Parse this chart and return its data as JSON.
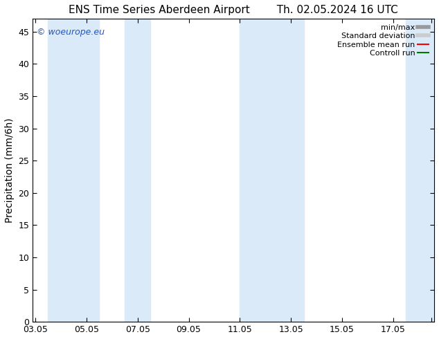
{
  "title_left": "ENS Time Series Aberdeen Airport",
  "title_right": "Th. 02.05.2024 16 UTC",
  "ylabel": "Precipitation (mm/6h)",
  "ylim": [
    0,
    47
  ],
  "yticks": [
    0,
    5,
    10,
    15,
    20,
    25,
    30,
    35,
    40,
    45
  ],
  "xtick_labels": [
    "03.05",
    "05.05",
    "07.05",
    "09.05",
    "11.05",
    "13.05",
    "15.05",
    "17.05",
    ""
  ],
  "xtick_positions": [
    0,
    2,
    4,
    6,
    8,
    10,
    12,
    14,
    15.5
  ],
  "xlim": [
    -0.1,
    15.6
  ],
  "background_color": "#ffffff",
  "plot_bg_color": "#ffffff",
  "shade_color": "#daeaf8",
  "shaded_bands": [
    [
      0.5,
      2.5
    ],
    [
      3.5,
      4.5
    ],
    [
      8.0,
      10.5
    ],
    [
      14.5,
      15.6
    ]
  ],
  "watermark_text": "© woeurope.eu",
  "watermark_color": "#2255cc",
  "legend_entries": [
    {
      "label": "min/max",
      "color": "#999999",
      "lw": 4,
      "ls": "-"
    },
    {
      "label": "Standard deviation",
      "color": "#cccccc",
      "lw": 4,
      "ls": "-"
    },
    {
      "label": "Ensemble mean run",
      "color": "#ff0000",
      "lw": 1.5,
      "ls": "-"
    },
    {
      "label": "Controll run",
      "color": "#007700",
      "lw": 1.5,
      "ls": "-"
    }
  ],
  "title_fontsize": 11,
  "axis_label_fontsize": 10,
  "tick_fontsize": 9,
  "legend_fontsize": 8,
  "watermark_fontsize": 9
}
